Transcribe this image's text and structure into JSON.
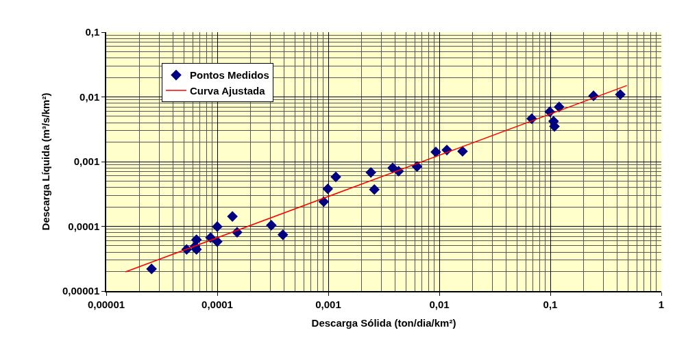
{
  "chart_data": {
    "type": "scatter",
    "xlabel": "Descarga Sólida (ton/dia/km²)",
    "ylabel": "Descarga Líquida (m³/s/km²)",
    "log": "xy",
    "grid": true,
    "legend": "top left",
    "xlim": [
      1e-05,
      1
    ],
    "ylim": [
      1e-05,
      0.1
    ],
    "xticks": [
      {
        "value": 1e-05,
        "label": "0,00001"
      },
      {
        "value": 0.0001,
        "label": "0,0001"
      },
      {
        "value": 0.001,
        "label": "0,001"
      },
      {
        "value": 0.01,
        "label": "0,01"
      },
      {
        "value": 0.1,
        "label": "0,1"
      },
      1
    ],
    "yticks": [
      {
        "value": 1e-05,
        "label": "0,00001"
      },
      {
        "value": 0.0001,
        "label": "0,0001"
      },
      {
        "value": 0.001,
        "label": "0,001"
      },
      {
        "value": 0.01,
        "label": "0,01"
      },
      {
        "value": 0.1,
        "label": "0,1"
      }
    ],
    "series": [
      {
        "name": "Pontos Medidos",
        "marker": "diamond",
        "color": "#000080",
        "x": [
          2.56e-05,
          5.3e-05,
          6.3e-05,
          6.5e-05,
          6.5e-05,
          8.7e-05,
          0.0001,
          0.0001,
          0.000137,
          0.000151,
          0.000307,
          0.00039,
          0.00091,
          0.00099,
          0.00117,
          0.00242,
          0.0026,
          0.0038,
          0.0043,
          0.0063,
          0.0093,
          0.0117,
          0.0162,
          0.068,
          0.099,
          0.107,
          0.109,
          0.12,
          0.245,
          0.427
        ],
        "values": [
          2.2e-05,
          4.4e-05,
          4.9e-05,
          6.2e-05,
          4.4e-05,
          6.7e-05,
          9.9e-05,
          5.8e-05,
          0.000142,
          8.1e-05,
          0.000104,
          7.4e-05,
          0.00024,
          0.00038,
          0.00058,
          0.00068,
          0.00037,
          0.0008,
          0.00071,
          0.00084,
          0.00141,
          0.00151,
          0.00144,
          0.0046,
          0.0059,
          0.0042,
          0.0035,
          0.007,
          0.0104,
          0.0109
        ]
      },
      {
        "name": "Curva Ajustada",
        "type": "line",
        "marker": "none",
        "line_style": "solid",
        "color": "#ff0000",
        "x": [
          1.49e-05,
          0.49
        ],
        "values": [
          1.98e-05,
          0.015
        ]
      }
    ]
  }
}
